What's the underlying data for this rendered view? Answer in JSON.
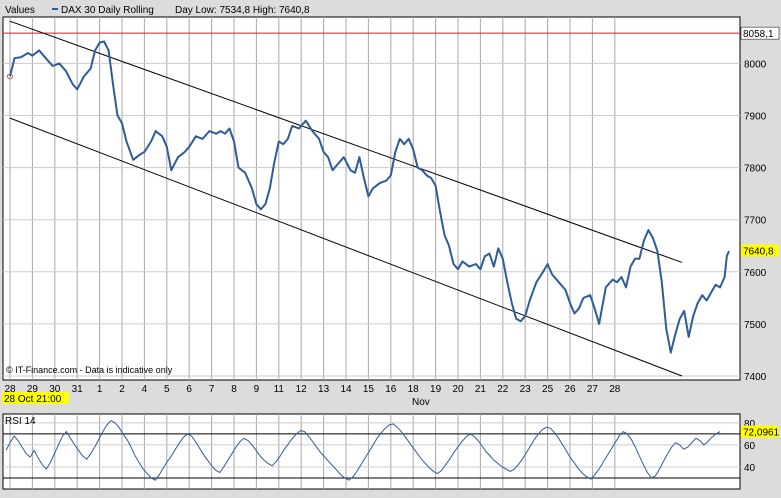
{
  "header": {
    "values_label": "Values",
    "legend_text": "DAX 30 Daily Rolling",
    "range_text": "Day Low: 7534,8 High: 7640,8"
  },
  "watermark": "© IT-Finance.com - Data is indicative only",
  "cursor_time_label": "28 Oct 21:00",
  "month_label": "Nov",
  "colors": {
    "price_line": "#2e5c99",
    "resistance_line": "#d02020",
    "last_price_bg": "#ffff00",
    "channel": "#000000",
    "panel_bg": "#ffffff",
    "frame_bg": "#dcdcdc"
  },
  "chart_data": [
    {
      "type": "line",
      "title": "DAX 30 Daily Rolling",
      "x_tick_labels": [
        "28",
        "29",
        "30",
        "31",
        "1",
        "2",
        "4",
        "5",
        "6",
        "7",
        "8",
        "9",
        "11",
        "12",
        "13",
        "14",
        "15",
        "16",
        "18",
        "19",
        "20",
        "21",
        "22",
        "23",
        "25",
        "26",
        "27",
        "28"
      ],
      "y_ticks": [
        7400,
        7500,
        7600,
        7700,
        7800,
        7900,
        8000
      ],
      "ylim": [
        7400,
        8070
      ],
      "grid": true,
      "horizontal_line": {
        "value": 8058.1,
        "label": "8058,1"
      },
      "last_price": {
        "value": 7640.8,
        "label": "7640,8"
      },
      "channel": {
        "upper": [
          [
            0.0,
            8081
          ],
          [
            30.0,
            7618
          ]
        ],
        "lower": [
          [
            0.0,
            7895
          ],
          [
            30.0,
            7400
          ]
        ]
      },
      "series": [
        {
          "points": [
            [
              0.0,
              7975
            ],
            [
              0.2,
              8010
            ],
            [
              0.5,
              8012
            ],
            [
              0.8,
              8020
            ],
            [
              1.0,
              8015
            ],
            [
              1.3,
              8025
            ],
            [
              1.6,
              8010
            ],
            [
              1.9,
              7995
            ],
            [
              2.2,
              8000
            ],
            [
              2.5,
              7985
            ],
            [
              2.8,
              7960
            ],
            [
              3.0,
              7950
            ],
            [
              3.3,
              7975
            ],
            [
              3.6,
              7990
            ],
            [
              3.8,
              8025
            ],
            [
              4.0,
              8040
            ],
            [
              4.2,
              8042
            ],
            [
              4.4,
              8025
            ],
            [
              4.6,
              7960
            ],
            [
              4.8,
              7900
            ],
            [
              5.0,
              7885
            ],
            [
              5.2,
              7850
            ],
            [
              5.5,
              7815
            ],
            [
              5.8,
              7825
            ],
            [
              6.0,
              7830
            ],
            [
              6.3,
              7850
            ],
            [
              6.5,
              7870
            ],
            [
              6.8,
              7860
            ],
            [
              7.0,
              7840
            ],
            [
              7.2,
              7795
            ],
            [
              7.5,
              7820
            ],
            [
              7.8,
              7830
            ],
            [
              8.0,
              7840
            ],
            [
              8.3,
              7860
            ],
            [
              8.6,
              7855
            ],
            [
              8.9,
              7870
            ],
            [
              9.2,
              7865
            ],
            [
              9.4,
              7870
            ],
            [
              9.6,
              7865
            ],
            [
              9.8,
              7875
            ],
            [
              10.0,
              7850
            ],
            [
              10.2,
              7800
            ],
            [
              10.5,
              7790
            ],
            [
              10.8,
              7760
            ],
            [
              11.0,
              7730
            ],
            [
              11.2,
              7720
            ],
            [
              11.4,
              7730
            ],
            [
              11.6,
              7760
            ],
            [
              11.8,
              7810
            ],
            [
              12.0,
              7850
            ],
            [
              12.2,
              7845
            ],
            [
              12.4,
              7855
            ],
            [
              12.6,
              7880
            ],
            [
              12.9,
              7875
            ],
            [
              13.2,
              7890
            ],
            [
              13.5,
              7870
            ],
            [
              13.8,
              7855
            ],
            [
              14.0,
              7830
            ],
            [
              14.2,
              7820
            ],
            [
              14.4,
              7795
            ],
            [
              14.6,
              7805
            ],
            [
              14.9,
              7820
            ],
            [
              15.2,
              7795
            ],
            [
              15.4,
              7790
            ],
            [
              15.6,
              7820
            ],
            [
              15.8,
              7780
            ],
            [
              16.0,
              7745
            ],
            [
              16.2,
              7760
            ],
            [
              16.5,
              7770
            ],
            [
              16.8,
              7775
            ],
            [
              17.0,
              7785
            ],
            [
              17.2,
              7830
            ],
            [
              17.4,
              7855
            ],
            [
              17.6,
              7845
            ],
            [
              17.8,
              7855
            ],
            [
              18.0,
              7835
            ],
            [
              18.2,
              7800
            ],
            [
              18.4,
              7795
            ],
            [
              18.6,
              7785
            ],
            [
              18.8,
              7780
            ],
            [
              19.0,
              7765
            ],
            [
              19.2,
              7715
            ],
            [
              19.4,
              7670
            ],
            [
              19.6,
              7650
            ],
            [
              19.8,
              7615
            ],
            [
              20.0,
              7605
            ],
            [
              20.2,
              7620
            ],
            [
              20.5,
              7610
            ],
            [
              20.8,
              7615
            ],
            [
              21.0,
              7605
            ],
            [
              21.2,
              7630
            ],
            [
              21.4,
              7635
            ],
            [
              21.6,
              7610
            ],
            [
              21.8,
              7645
            ],
            [
              22.0,
              7625
            ],
            [
              22.2,
              7580
            ],
            [
              22.4,
              7540
            ],
            [
              22.6,
              7510
            ],
            [
              22.8,
              7505
            ],
            [
              23.0,
              7515
            ],
            [
              23.2,
              7545
            ],
            [
              23.5,
              7580
            ],
            [
              23.8,
              7600
            ],
            [
              24.0,
              7615
            ],
            [
              24.2,
              7595
            ],
            [
              24.5,
              7580
            ],
            [
              24.8,
              7565
            ],
            [
              25.0,
              7540
            ],
            [
              25.2,
              7520
            ],
            [
              25.4,
              7530
            ],
            [
              25.6,
              7550
            ],
            [
              25.9,
              7555
            ],
            [
              26.1,
              7530
            ],
            [
              26.3,
              7500
            ],
            [
              26.6,
              7570
            ],
            [
              26.9,
              7585
            ],
            [
              27.1,
              7580
            ],
            [
              27.3,
              7590
            ],
            [
              27.5,
              7570
            ],
            [
              27.7,
              7610
            ],
            [
              27.9,
              7625
            ],
            [
              28.1,
              7625
            ],
            [
              28.3,
              7660
            ],
            [
              28.5,
              7680
            ],
            [
              28.7,
              7665
            ],
            [
              28.9,
              7640
            ],
            [
              29.1,
              7580
            ],
            [
              29.3,
              7490
            ],
            [
              29.5,
              7445
            ],
            [
              29.7,
              7480
            ],
            [
              29.9,
              7510
            ],
            [
              30.1,
              7525
            ],
            [
              30.3,
              7475
            ],
            [
              30.5,
              7515
            ],
            [
              30.7,
              7540
            ],
            [
              30.9,
              7555
            ],
            [
              31.1,
              7545
            ],
            [
              31.3,
              7560
            ],
            [
              31.5,
              7575
            ],
            [
              31.7,
              7570
            ],
            [
              31.9,
              7590
            ],
            [
              32.0,
              7630
            ],
            [
              32.1,
              7640
            ]
          ]
        }
      ]
    },
    {
      "type": "line",
      "title": "RSI 14",
      "y_ticks": [
        40,
        60,
        80
      ],
      "ylim": [
        20,
        90
      ],
      "reference_lines": [
        70,
        30
      ],
      "last_value": {
        "value": 72.0961,
        "label": "72,0961"
      },
      "series": [
        {
          "name": "RSI 14",
          "values": [
            55,
            62,
            68,
            64,
            58,
            52,
            49,
            55,
            48,
            42,
            38,
            44,
            52,
            60,
            68,
            72,
            66,
            60,
            55,
            50,
            47,
            52,
            58,
            65,
            72,
            78,
            82,
            80,
            76,
            70,
            65,
            58,
            50,
            44,
            38,
            34,
            30,
            28,
            33,
            39,
            45,
            50,
            56,
            62,
            67,
            70,
            68,
            63,
            57,
            51,
            46,
            41,
            37,
            35,
            40,
            46,
            52,
            58,
            63,
            66,
            64,
            60,
            55,
            50,
            46,
            43,
            41,
            45,
            50,
            56,
            61,
            66,
            70,
            73,
            72,
            68,
            63,
            58,
            53,
            49,
            45,
            41,
            37,
            33,
            30,
            28,
            31,
            36,
            42,
            48,
            54,
            60,
            66,
            71,
            75,
            78,
            79,
            76,
            72,
            67,
            62,
            57,
            52,
            47,
            43,
            39,
            36,
            34,
            37,
            42,
            47,
            53,
            58,
            63,
            67,
            70,
            68,
            64,
            59,
            54,
            50,
            46,
            43,
            40,
            38,
            36,
            38,
            42,
            47,
            53,
            59,
            65,
            70,
            74,
            76,
            75,
            71,
            66,
            60,
            54,
            48,
            43,
            38,
            34,
            31,
            29,
            33,
            38,
            44,
            50,
            56,
            62,
            68,
            72,
            70,
            65,
            58,
            50,
            42,
            35,
            30,
            32,
            38,
            45,
            52,
            58,
            62,
            60,
            56,
            58,
            62,
            66,
            64,
            60,
            63,
            67,
            70,
            72
          ]
        }
      ]
    }
  ]
}
